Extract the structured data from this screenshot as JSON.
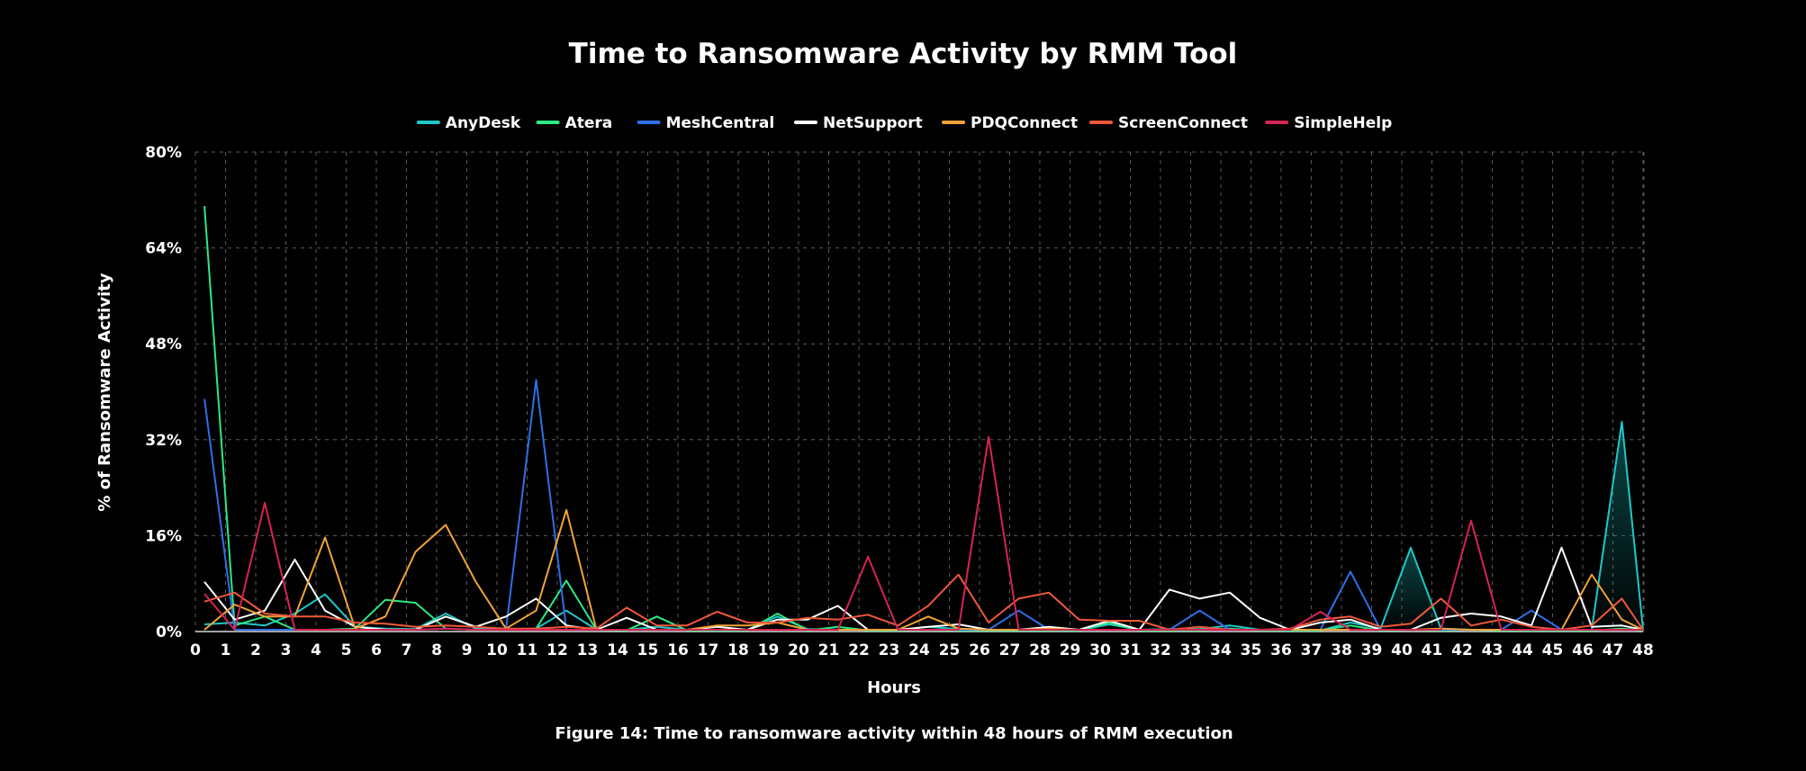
{
  "chart_data": {
    "type": "line",
    "title": "Time to Ransomware Activity by RMM Tool",
    "xlabel": "Hours",
    "ylabel": "% of Ransomware Activity",
    "caption": "Figure 14: Time to ransomware activity within 48 hours of RMM execution",
    "x_ticks": [
      "0",
      "1",
      "2",
      "3",
      "4",
      "5",
      "6",
      "7",
      "8",
      "9",
      "10",
      "11",
      "12",
      "13",
      "14",
      "15",
      "16",
      "17",
      "18",
      "19",
      "20",
      "21",
      "22",
      "23",
      "24",
      "25",
      "26",
      "27",
      "28",
      "29",
      "30",
      "31",
      "32",
      "33",
      "34",
      "35",
      "36",
      "37",
      "38",
      "39",
      "40",
      "41",
      "42",
      "43",
      "44",
      "45",
      "46",
      "47",
      "48"
    ],
    "y_ticks": [
      "0%",
      "16%",
      "32%",
      "48%",
      "64%",
      "80%"
    ],
    "ylim": [
      0,
      80
    ],
    "xlim": [
      0,
      48
    ],
    "grid": true,
    "legend_position": "top-center",
    "series": [
      {
        "name": "AnyDesk",
        "color": "#1fc8c8",
        "x": [
          0.3,
          1.3,
          2.3,
          3.3,
          4.3,
          5.3,
          6.3,
          7.3,
          8.3,
          9.3,
          10.3,
          11.3,
          12.3,
          13.3,
          14.3,
          15.3,
          16.3,
          17.3,
          18.3,
          19.3,
          20.3,
          21.3,
          22.3,
          23.3,
          24.3,
          25.3,
          26.3,
          27.3,
          28.3,
          29.3,
          30.3,
          31.3,
          32.3,
          33.3,
          34.3,
          35.3,
          36.3,
          37.3,
          38.3,
          39.3,
          40.3,
          41.3,
          42.3,
          43.3,
          44.3,
          45.3,
          46.3,
          47.3,
          48
        ],
        "y": [
          1.2,
          1.5,
          1.0,
          3.0,
          6.2,
          0.8,
          0.5,
          0.4,
          3.0,
          0.5,
          0.4,
          0.5,
          3.5,
          0.3,
          0.3,
          0.8,
          0.3,
          0.2,
          0.3,
          2.5,
          0.4,
          0.3,
          0.3,
          0.2,
          0.8,
          0.4,
          0.3,
          0.3,
          0.3,
          0.2,
          1.2,
          0.3,
          0.4,
          0.4,
          1.0,
          0.3,
          0.2,
          0.2,
          1.5,
          0.5,
          14.0,
          0.5,
          0.3,
          0.3,
          0.2,
          0.3,
          0.3,
          35.0,
          0.3
        ]
      },
      {
        "name": "Atera",
        "color": "#2ee882",
        "x": [
          0.3,
          1.3,
          2.3,
          3.3,
          4.3,
          5.3,
          6.3,
          7.3,
          8.3,
          9.3,
          10.3,
          11.3,
          12.3,
          13.3,
          14.3,
          15.3,
          16.3,
          17.3,
          18.3,
          19.3,
          20.3,
          21.3,
          22.3,
          23.3,
          24.3,
          25.3,
          26.3,
          27.3,
          28.3,
          29.3,
          30.3,
          31.3,
          32.3,
          33.3,
          34.3,
          35.3,
          36.3,
          37.3,
          38.3,
          39.3,
          40.3,
          41.3,
          42.3,
          43.3,
          44.3,
          45.3,
          46.3,
          47.3,
          48
        ],
        "y": [
          71.0,
          1.0,
          2.5,
          0.3,
          0.3,
          0.5,
          5.3,
          4.8,
          0.5,
          0.3,
          0.3,
          0.5,
          8.5,
          0.3,
          0.2,
          2.5,
          0.2,
          0.2,
          0.2,
          3.0,
          0.2,
          0.8,
          0.2,
          0.2,
          0.3,
          0.2,
          0.2,
          0.2,
          0.2,
          0.2,
          1.5,
          0.2,
          0.2,
          0.2,
          0.5,
          0.2,
          0.2,
          0.2,
          1.0,
          0.2,
          0.3,
          0.2,
          0.3,
          0.2,
          0.2,
          0.2,
          0.2,
          0.5,
          0.2
        ]
      },
      {
        "name": "MeshCentral",
        "color": "#2f6fe8",
        "x": [
          0.3,
          1.3,
          2.3,
          3.3,
          4.3,
          5.3,
          6.3,
          7.3,
          8.3,
          9.3,
          10.3,
          11.3,
          12.3,
          13.3,
          14.3,
          15.3,
          16.3,
          17.3,
          18.3,
          19.3,
          20.3,
          21.3,
          22.3,
          23.3,
          24.3,
          25.3,
          26.3,
          27.3,
          28.3,
          29.3,
          30.3,
          31.3,
          32.3,
          33.3,
          34.3,
          35.3,
          36.3,
          37.3,
          38.3,
          39.3,
          40.3,
          41.3,
          42.3,
          43.3,
          44.3,
          45.3,
          46.3,
          47.3,
          48
        ],
        "y": [
          38.8,
          0.3,
          0.3,
          0.3,
          0.3,
          0.3,
          0.3,
          0.3,
          0.5,
          0.3,
          0.3,
          42.0,
          0.3,
          0.3,
          0.3,
          0.3,
          0.3,
          0.3,
          0.3,
          0.3,
          0.3,
          0.3,
          0.3,
          0.3,
          0.3,
          0.3,
          0.3,
          3.5,
          0.3,
          0.3,
          0.3,
          0.3,
          0.3,
          3.5,
          0.3,
          0.3,
          0.3,
          0.3,
          10.0,
          0.3,
          0.3,
          0.3,
          0.3,
          0.3,
          3.5,
          0.3,
          0.3,
          0.3,
          0.3
        ]
      },
      {
        "name": "NetSupport",
        "color": "#ffffff",
        "x": [
          0.3,
          1.3,
          2.3,
          3.3,
          4.3,
          5.3,
          6.3,
          7.3,
          8.3,
          9.3,
          10.3,
          11.3,
          12.3,
          13.3,
          14.3,
          15.3,
          16.3,
          17.3,
          18.3,
          19.3,
          20.3,
          21.3,
          22.3,
          23.3,
          24.3,
          25.3,
          26.3,
          27.3,
          28.3,
          29.3,
          30.3,
          31.3,
          32.3,
          33.3,
          34.3,
          35.3,
          36.3,
          37.3,
          38.3,
          39.3,
          40.3,
          41.3,
          42.3,
          43.3,
          44.3,
          45.3,
          46.3,
          47.3,
          48
        ],
        "y": [
          8.3,
          2.0,
          3.5,
          12.0,
          3.5,
          0.8,
          0.3,
          0.3,
          2.5,
          0.8,
          2.5,
          5.5,
          1.0,
          0.3,
          2.3,
          0.3,
          0.3,
          0.8,
          0.3,
          2.0,
          2.0,
          4.3,
          0.3,
          0.3,
          0.8,
          1.2,
          0.3,
          0.3,
          0.8,
          0.3,
          1.8,
          0.3,
          7.0,
          5.5,
          6.5,
          2.3,
          0.3,
          1.5,
          2.0,
          0.3,
          0.3,
          2.3,
          3.0,
          2.5,
          1.0,
          14.0,
          0.8,
          1.0,
          0.3
        ]
      },
      {
        "name": "PDQConnect",
        "color": "#f0a33a",
        "x": [
          0.3,
          1.3,
          2.3,
          3.3,
          4.3,
          5.3,
          6.3,
          7.3,
          8.3,
          9.3,
          10.3,
          11.3,
          12.3,
          13.3,
          14.3,
          15.3,
          16.3,
          17.3,
          18.3,
          19.3,
          20.3,
          21.3,
          22.3,
          23.3,
          24.3,
          25.3,
          26.3,
          27.3,
          28.3,
          29.3,
          30.3,
          31.3,
          32.3,
          33.3,
          34.3,
          35.3,
          36.3,
          37.3,
          38.3,
          39.3,
          40.3,
          41.3,
          42.3,
          43.3,
          44.3,
          45.3,
          46.3,
          47.3,
          48
        ],
        "y": [
          0.3,
          4.5,
          2.5,
          2.5,
          15.7,
          0.5,
          2.5,
          13.3,
          17.8,
          8.3,
          0.5,
          3.5,
          20.3,
          0.3,
          0.3,
          0.3,
          0.3,
          1.0,
          1.0,
          1.5,
          0.3,
          0.3,
          0.3,
          0.3,
          2.5,
          0.5,
          0.3,
          0.3,
          0.5,
          0.3,
          0.3,
          0.3,
          0.3,
          0.3,
          0.3,
          0.3,
          0.3,
          0.3,
          0.3,
          0.3,
          0.3,
          0.5,
          0.3,
          0.3,
          0.3,
          0.3,
          9.5,
          2.0,
          0.3
        ]
      },
      {
        "name": "ScreenConnect",
        "color": "#f0583a",
        "x": [
          0.3,
          1.3,
          2.3,
          3.3,
          4.3,
          5.3,
          6.3,
          7.3,
          8.3,
          9.3,
          10.3,
          11.3,
          12.3,
          13.3,
          14.3,
          15.3,
          16.3,
          17.3,
          18.3,
          19.3,
          20.3,
          21.3,
          22.3,
          23.3,
          24.3,
          25.3,
          26.3,
          27.3,
          28.3,
          29.3,
          30.3,
          31.3,
          32.3,
          33.3,
          34.3,
          35.3,
          36.3,
          37.3,
          38.3,
          39.3,
          40.3,
          41.3,
          42.3,
          43.3,
          44.3,
          45.3,
          46.3,
          47.3,
          48
        ],
        "y": [
          5.0,
          6.5,
          3.0,
          2.5,
          2.5,
          1.5,
          1.3,
          0.8,
          1.0,
          0.8,
          0.5,
          0.5,
          0.8,
          0.5,
          4.0,
          1.0,
          1.0,
          3.3,
          1.5,
          1.5,
          2.3,
          2.0,
          2.8,
          1.0,
          4.3,
          9.5,
          1.5,
          5.5,
          6.5,
          2.0,
          1.8,
          1.8,
          0.3,
          0.8,
          0.3,
          0.3,
          0.5,
          2.0,
          2.5,
          0.8,
          1.3,
          5.5,
          1.0,
          2.0,
          0.8,
          0.3,
          1.0,
          5.5,
          0.3
        ]
      },
      {
        "name": "SimpleHelp",
        "color": "#d62452",
        "x": [
          0.3,
          1.3,
          2.3,
          3.3,
          4.3,
          5.3,
          6.3,
          7.3,
          8.3,
          9.3,
          10.3,
          11.3,
          12.3,
          13.3,
          14.3,
          15.3,
          16.3,
          17.3,
          18.3,
          19.3,
          20.3,
          21.3,
          22.3,
          23.3,
          24.3,
          25.3,
          26.3,
          27.3,
          28.3,
          29.3,
          30.3,
          31.3,
          32.3,
          33.3,
          34.3,
          35.3,
          36.3,
          37.3,
          38.3,
          39.3,
          40.3,
          41.3,
          42.3,
          43.3,
          44.3,
          45.3,
          46.3,
          47.3,
          48
        ],
        "y": [
          6.3,
          0.3,
          21.5,
          0.3,
          0.3,
          0.3,
          0.3,
          0.3,
          0.5,
          0.3,
          0.3,
          0.3,
          0.3,
          0.3,
          0.3,
          0.3,
          0.3,
          0.3,
          0.3,
          0.3,
          0.3,
          0.3,
          12.5,
          0.3,
          0.3,
          0.3,
          32.5,
          0.3,
          0.3,
          0.3,
          0.3,
          0.3,
          0.3,
          0.3,
          0.3,
          0.3,
          0.3,
          3.3,
          0.3,
          0.3,
          0.3,
          0.3,
          18.5,
          0.3,
          0.3,
          0.3,
          0.3,
          0.3,
          0.3
        ]
      }
    ]
  }
}
